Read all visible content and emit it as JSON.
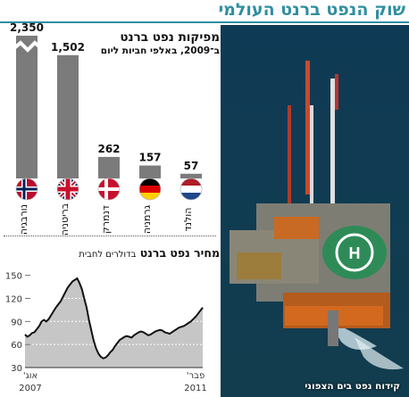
{
  "header": {
    "title": "שוק הנפט ברנט העולמי"
  },
  "production": {
    "title": "מפיקות נפט ברנט",
    "subtitle": "ב־2009, באלפי חביות ליום"
  },
  "price": {
    "title": "מחיר נפט ברנט",
    "unit": "בדולרים לחבית"
  },
  "photo": {
    "caption": "קידוח נפט בים הצפוני"
  },
  "colors": {
    "accent": "#2f8fa0",
    "bar": "#7b7b7b",
    "price_fill": "#c6c6c6",
    "price_line": "#111111"
  },
  "chart_data": [
    {
      "type": "bar",
      "categories": [
        "נורבגיה",
        "בריטניה",
        "דנמרק",
        "גרמניה",
        "הולנד"
      ],
      "values": [
        2350,
        1502,
        262,
        157,
        57
      ],
      "value_labels": [
        "2,350",
        "1,502",
        "262",
        "157",
        "57"
      ],
      "flags": [
        "norway-flag-icon",
        "uk-flag-icon",
        "denmark-flag-icon",
        "germany-flag-icon",
        "netherlands-flag-icon"
      ],
      "axis_break": true
    },
    {
      "type": "area",
      "x_labels": [
        {
          "label": "אוג'",
          "year": "2007"
        },
        {
          "label": "פבר'",
          "year": "2011"
        }
      ],
      "yticks": [
        30,
        60,
        90,
        120,
        150
      ],
      "ylim": [
        30,
        160
      ],
      "grid": true,
      "values": [
        73,
        70,
        72,
        75,
        76,
        80,
        84,
        90,
        92,
        90,
        93,
        98,
        103,
        108,
        112,
        116,
        122,
        128,
        134,
        138,
        142,
        144,
        146,
        140,
        132,
        120,
        108,
        92,
        78,
        65,
        55,
        48,
        44,
        42,
        43,
        46,
        50,
        53,
        58,
        62,
        66,
        68,
        70,
        71,
        70,
        69,
        72,
        74,
        76,
        77,
        76,
        74,
        72,
        73,
        75,
        77,
        78,
        79,
        78,
        76,
        75,
        74,
        76,
        78,
        80,
        82,
        83,
        84,
        86,
        88,
        90,
        93,
        96,
        100,
        104,
        108
      ]
    }
  ]
}
